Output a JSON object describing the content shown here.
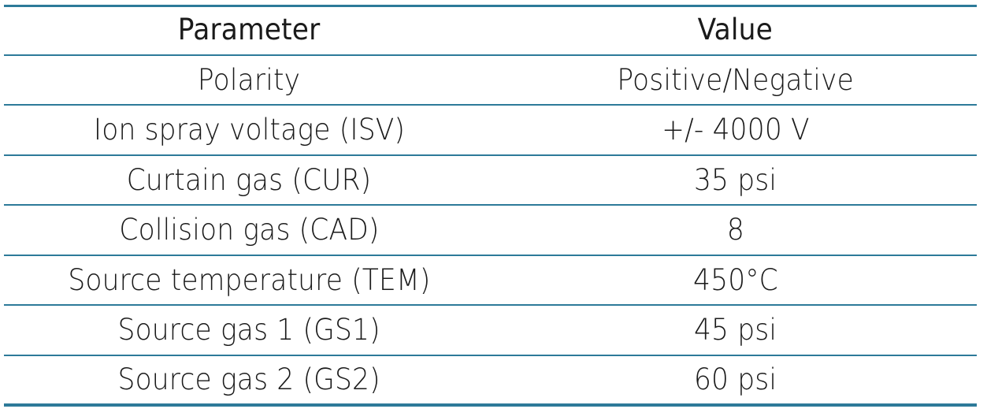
{
  "table": {
    "headers": [
      "Parameter",
      "Value"
    ],
    "rows": [
      [
        "Polarity",
        "Positive/Negative"
      ],
      [
        "Ion spray voltage (ISV)",
        "+/- 4000 V"
      ],
      [
        "Curtain gas (CUR)",
        "35 psi"
      ],
      [
        "Collision gas (CAD)",
        "8"
      ],
      [
        "Source temperature (TEM)",
        "450°C"
      ],
      [
        "Source gas 1 (GS1)",
        "45 psi"
      ],
      [
        "Source gas 2 (GS2)",
        "60 psi"
      ]
    ]
  },
  "colors": {
    "rule": "#2d7a99",
    "text": "#1a1a1a"
  }
}
